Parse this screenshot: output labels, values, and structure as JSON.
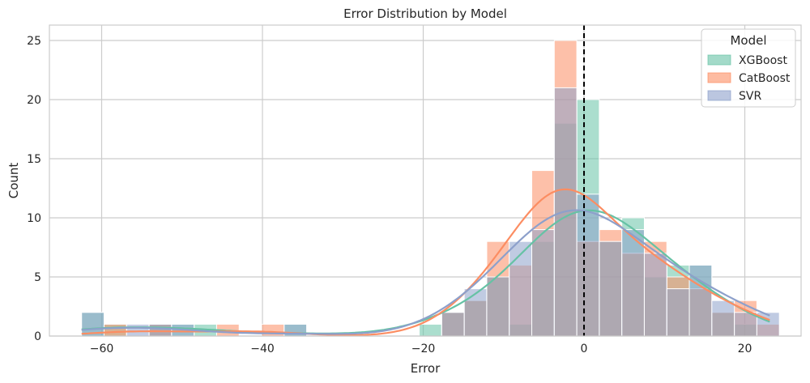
{
  "chart_data": {
    "type": "bar",
    "title": "Error Distribution by Model",
    "xlabel": "Error",
    "ylabel": "Count",
    "xlim": [
      -66.5,
      27.0
    ],
    "ylim": [
      0,
      26.3
    ],
    "xticks": [
      -60,
      -40,
      -20,
      0,
      20
    ],
    "xtick_labels": [
      "−60",
      "−40",
      "−20",
      "0",
      "20"
    ],
    "yticks": [
      0,
      5,
      10,
      15,
      20,
      25
    ],
    "ytick_labels": [
      "0",
      "5",
      "10",
      "15",
      "20",
      "25"
    ],
    "grid": true,
    "bin_edges": [
      -62.5,
      -59.7,
      -56.9,
      -54.1,
      -51.3,
      -48.5,
      -45.7,
      -42.9,
      -40.1,
      -37.3,
      -34.5,
      -31.7,
      -28.9,
      -26.1,
      -23.3,
      -20.5,
      -17.7,
      -14.9,
      -12.1,
      -9.3,
      -6.5,
      -3.7,
      -0.9,
      1.9,
      4.7,
      7.5,
      10.3,
      13.1,
      15.9,
      18.7,
      21.5,
      24.3
    ],
    "series": [
      {
        "name": "XGBoost",
        "color": "#66c2a5",
        "values": [
          2,
          1,
          0,
          1,
          1,
          1,
          0,
          0,
          0,
          1,
          0,
          0,
          0,
          0,
          0,
          1,
          2,
          3,
          5,
          1,
          8,
          18,
          20,
          8,
          10,
          5,
          6,
          6,
          2,
          1,
          0
        ]
      },
      {
        "name": "CatBoost",
        "color": "#fc8d62",
        "values": [
          0,
          1,
          0,
          1,
          0,
          0,
          1,
          0,
          1,
          0,
          0,
          0,
          0,
          0,
          0,
          0,
          2,
          3,
          8,
          6,
          14,
          25,
          8,
          9,
          7,
          8,
          5,
          4,
          2,
          3,
          1
        ]
      },
      {
        "name": "SVR",
        "color": "#8da0cb",
        "values": [
          2,
          0,
          1,
          1,
          1,
          0,
          0,
          0,
          0,
          1,
          0,
          0,
          0,
          0,
          0,
          0,
          2,
          4,
          5,
          8,
          9,
          21,
          12,
          8,
          9,
          7,
          4,
          6,
          3,
          2,
          2
        ]
      }
    ],
    "kde": true,
    "reference_line": {
      "x": 0,
      "style": "dashed",
      "color": "#000000"
    },
    "legend": {
      "title": "Model",
      "position": "top-right",
      "entries": [
        "XGBoost",
        "CatBoost",
        "SVR"
      ]
    }
  }
}
